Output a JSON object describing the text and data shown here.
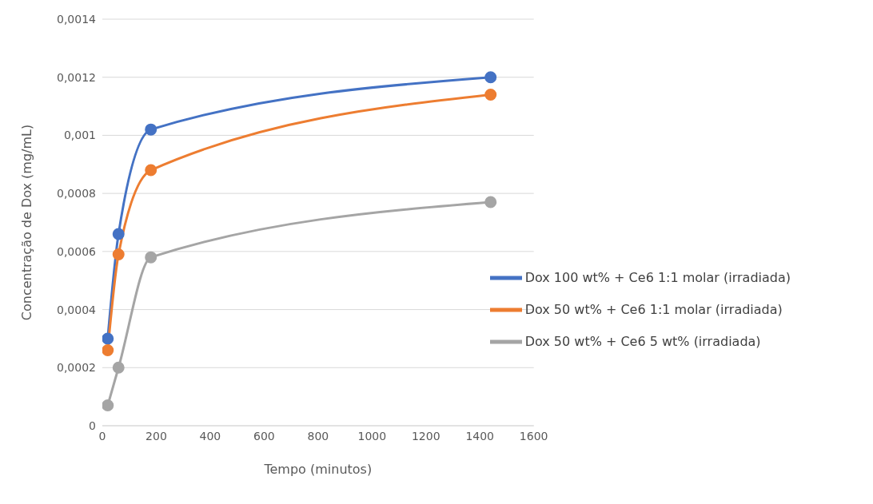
{
  "chart_data": {
    "type": "line",
    "xlabel": "Tempo (minutos)",
    "ylabel": "Concentração de Dox (mg/mL)",
    "x": [
      20,
      60,
      180,
      1440
    ],
    "series": [
      {
        "name": "Dox 100 wt% + Ce6 1:1 molar (irradiada)",
        "color": "#4472c4",
        "values": [
          0.0003,
          0.00066,
          0.00102,
          0.0012
        ]
      },
      {
        "name": "Dox 50 wt% + Ce6 1:1 molar (irradiada)",
        "color": "#ed7d31",
        "values": [
          0.00026,
          0.00059,
          0.00088,
          0.00114
        ]
      },
      {
        "name": "Dox 50 wt% + Ce6 5 wt% (irradiada)",
        "color": "#a5a5a5",
        "values": [
          7e-05,
          0.0002,
          0.00058,
          0.00077
        ]
      }
    ],
    "xlim": [
      0,
      1600
    ],
    "xticks": [
      0,
      200,
      400,
      600,
      800,
      1000,
      1200,
      1400,
      1600
    ],
    "ylim": [
      0,
      0.0014
    ],
    "yticks": [
      0,
      {
        "value": 0.0002,
        "label": "0,0002"
      },
      {
        "value": 0.0004,
        "label": "0,0004"
      },
      {
        "value": 0.0006,
        "label": "0,0006"
      },
      {
        "value": 0.0008,
        "label": "0,0008"
      },
      {
        "value": 0.001,
        "label": "0,001"
      },
      {
        "value": 0.0012,
        "label": "0,0012"
      },
      {
        "value": 0.0014,
        "label": "0,0014"
      }
    ],
    "grid": "y",
    "legend": "right",
    "marker": "circle",
    "line_style": "solid"
  }
}
